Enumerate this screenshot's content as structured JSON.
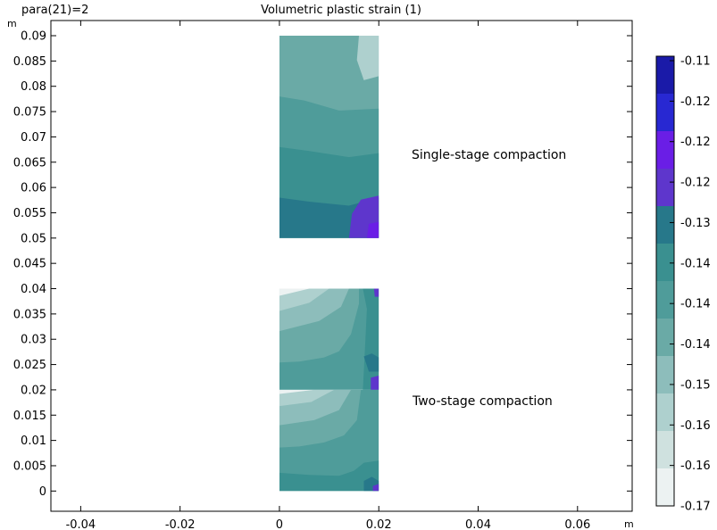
{
  "header": {
    "param_label": "para(21)=2",
    "title": "Volumetric plastic strain (1)"
  },
  "chart_data": {
    "type": "heatmap",
    "title": "Volumetric plastic strain (1)",
    "x_unit": "m",
    "y_unit": "m",
    "xlim": [
      -0.046,
      0.071
    ],
    "ylim": [
      -0.004,
      0.093
    ],
    "x_ticks": [
      "-0.04",
      "-0.02",
      "0",
      "0.02",
      "0.04",
      "0.06"
    ],
    "y_ticks": [
      "0",
      "0.005",
      "0.01",
      "0.015",
      "0.02",
      "0.025",
      "0.03",
      "0.035",
      "0.04",
      "0.045",
      "0.05",
      "0.055",
      "0.06",
      "0.065",
      "0.07",
      "0.075",
      "0.08",
      "0.085",
      "0.09"
    ],
    "colorbar": {
      "labels": [
        "-0.11",
        "-0.12",
        "-0.12",
        "-0.12",
        "-0.13",
        "-0.14",
        "-0.14",
        "-0.14",
        "-0.15",
        "-0.16",
        "-0.16",
        "-0.17"
      ],
      "colors": [
        "#1a1aa8",
        "#2828d2",
        "#6a1ee6",
        "#5e36cc",
        "#27788a",
        "#3a9090",
        "#4f9c9a",
        "#6aaaa6",
        "#8dbdbb",
        "#aed0ce",
        "#cfe1df",
        "#ecf2f2"
      ]
    },
    "annotations": [
      "Single-stage compaction",
      "Two-stage compaction"
    ],
    "domains": [
      {
        "name": "single-stage",
        "x": [
          0,
          0.02
        ],
        "y": [
          0.05,
          0.09
        ]
      },
      {
        "name": "two-stage-upper",
        "x": [
          0,
          0.02
        ],
        "y": [
          0.02,
          0.04
        ]
      },
      {
        "name": "two-stage-lower",
        "x": [
          0,
          0.02
        ],
        "y": [
          0,
          0.02
        ]
      }
    ]
  }
}
